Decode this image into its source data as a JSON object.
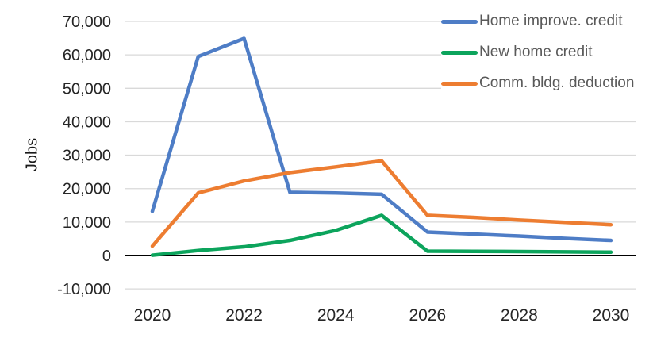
{
  "chart_data": {
    "type": "line",
    "title": "",
    "xlabel": "",
    "ylabel": "Jobs",
    "x": [
      2020,
      2021,
      2022,
      2023,
      2024,
      2025,
      2026,
      2027,
      2028,
      2029,
      2030
    ],
    "x_ticks": [
      {
        "value": 2020,
        "label": "2020"
      },
      {
        "value": 2022,
        "label": "2022"
      },
      {
        "value": 2024,
        "label": "2024"
      },
      {
        "value": 2026,
        "label": "2026"
      },
      {
        "value": 2028,
        "label": "2028"
      },
      {
        "value": 2030,
        "label": "2030"
      }
    ],
    "ylim": [
      -10000,
      70000
    ],
    "y_ticks": [
      {
        "value": 70000,
        "label": "70,000"
      },
      {
        "value": 60000,
        "label": "60,000"
      },
      {
        "value": 50000,
        "label": "50,000"
      },
      {
        "value": 40000,
        "label": "40,000"
      },
      {
        "value": 30000,
        "label": "30,000"
      },
      {
        "value": 20000,
        "label": "20,000"
      },
      {
        "value": 10000,
        "label": "10,000"
      },
      {
        "value": 0,
        "label": "0"
      },
      {
        "value": -10000,
        "label": "-10,000"
      }
    ],
    "grid": "horizontal",
    "legend_position": "top-right",
    "series": [
      {
        "name": "Home improve. credit",
        "color": "#4E7DC6",
        "values": [
          13200,
          59500,
          64900,
          18900,
          18700,
          18300,
          7000,
          6400,
          5800,
          5100,
          4500
        ]
      },
      {
        "name": "New home credit",
        "color": "#0CA45C",
        "values": [
          100,
          1500,
          2600,
          4500,
          7500,
          12000,
          1300,
          1250,
          1200,
          1100,
          1000
        ]
      },
      {
        "name": "Comm. bldg. deduction",
        "color": "#ED7D31",
        "values": [
          2800,
          18700,
          22300,
          24800,
          26500,
          28300,
          12000,
          11400,
          10600,
          9900,
          9200
        ]
      }
    ],
    "styles": {
      "gridline_color": "#D9D9D9",
      "axis_color": "#000000",
      "tick_label_color": "#262626",
      "legend_text_color": "#595959",
      "background": "#ffffff"
    }
  }
}
